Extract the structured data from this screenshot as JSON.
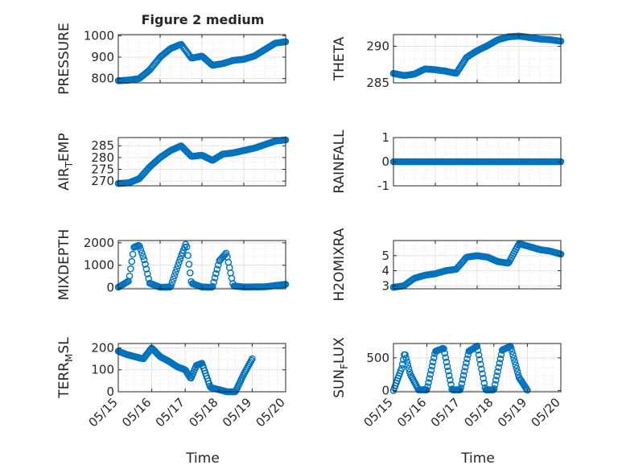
{
  "figure": {
    "title": "Figure 2 medium"
  },
  "chart_data": [
    {
      "type": "scatter",
      "name": "PRESSURE",
      "ylabel": "PRESSURE",
      "xlim": [
        "05/15",
        "05/19"
      ],
      "ylim": [
        780,
        1005
      ],
      "yticks": [
        800,
        900,
        1000
      ],
      "ytick_labels": [
        "800",
        "900",
        "1000"
      ],
      "grid": true,
      "minor_grid": true,
      "x": [
        "05/15 00:00",
        "05/15 06:00",
        "05/15 12:00",
        "05/15 18:00",
        "05/16 00:00",
        "05/16 06:00",
        "05/16 12:00",
        "05/16 18:00",
        "05/17 00:00",
        "05/17 06:00",
        "05/17 12:00",
        "05/17 18:00",
        "05/18 00:00",
        "05/18 06:00",
        "05/18 12:00",
        "05/18 18:00",
        "05/19 00:00"
      ],
      "y": [
        790,
        793,
        800,
        840,
        900,
        940,
        960,
        895,
        905,
        862,
        870,
        885,
        890,
        905,
        935,
        965,
        972
      ]
    },
    {
      "type": "scatter",
      "name": "THETA",
      "ylabel": "THETA",
      "xlim": [
        "05/15",
        "05/19"
      ],
      "ylim": [
        285,
        291.6
      ],
      "yticks": [
        285,
        290
      ],
      "ytick_labels": [
        "285",
        "290"
      ],
      "grid": true,
      "minor_grid": true,
      "x": [
        "05/15 00:00",
        "05/15 06:00",
        "05/15 12:00",
        "05/15 18:00",
        "05/16 00:00",
        "05/16 06:00",
        "05/16 12:00",
        "05/16 18:00",
        "05/17 00:00",
        "05/17 06:00",
        "05/17 12:00",
        "05/17 18:00",
        "05/18 00:00",
        "05/18 06:00",
        "05/18 12:00",
        "05/18 18:00",
        "05/19 00:00"
      ],
      "y": [
        286.3,
        286.0,
        286.2,
        286.9,
        286.8,
        286.6,
        286.3,
        288.5,
        289.4,
        290.1,
        290.9,
        291.3,
        291.4,
        291.2,
        291.0,
        290.9,
        290.7
      ]
    },
    {
      "type": "scatter",
      "name": "AIR_TEMP",
      "ylabel_main": "AIR",
      "ylabel_sub": "T",
      "ylabel_rest": "EMP",
      "xlim": [
        "05/15",
        "05/19"
      ],
      "ylim": [
        268,
        288.5
      ],
      "yticks": [
        270,
        275,
        280,
        285
      ],
      "ytick_labels": [
        "270",
        "275",
        "280",
        "285"
      ],
      "grid": true,
      "minor_grid": true,
      "x": [
        "05/15 00:00",
        "05/15 06:00",
        "05/15 12:00",
        "05/15 18:00",
        "05/16 00:00",
        "05/16 06:00",
        "05/16 12:00",
        "05/16 18:00",
        "05/17 00:00",
        "05/17 06:00",
        "05/17 12:00",
        "05/17 18:00",
        "05/18 00:00",
        "05/18 06:00",
        "05/18 12:00",
        "05/18 18:00",
        "05/19 00:00"
      ],
      "y": [
        269,
        269.3,
        271,
        276,
        280,
        283,
        285,
        280.5,
        281,
        278.8,
        281.5,
        282,
        283,
        284,
        285.5,
        287,
        287.5
      ]
    },
    {
      "type": "scatter",
      "name": "RAINFALL",
      "ylabel": "RAINFALL",
      "xlim": [
        "05/15",
        "05/19"
      ],
      "ylim": [
        -1,
        1
      ],
      "yticks": [
        -1,
        0,
        1
      ],
      "ytick_labels": [
        "-1",
        "0",
        "1"
      ],
      "grid": true,
      "minor_grid": true,
      "x": [
        "05/15 00:00",
        "05/15 12:00",
        "05/16 00:00",
        "05/16 12:00",
        "05/17 00:00",
        "05/17 12:00",
        "05/18 00:00",
        "05/18 12:00",
        "05/19 00:00"
      ],
      "y": [
        0,
        0,
        0,
        0,
        0,
        0,
        0,
        0,
        0
      ]
    },
    {
      "type": "scatter",
      "name": "MIXDEPTH",
      "ylabel": "MIXDEPTH",
      "xlim": [
        "05/15",
        "05/19"
      ],
      "ylim": [
        -50,
        2100
      ],
      "yticks": [
        0,
        1000,
        2000
      ],
      "ytick_labels": [
        "0",
        "1000",
        "2000"
      ],
      "grid": true,
      "minor_grid": true,
      "x": [
        "05/15 00:00",
        "05/15 06:00",
        "05/15 09:00",
        "05/15 12:00",
        "05/15 15:00",
        "05/15 18:00",
        "05/16 00:00",
        "05/16 06:00",
        "05/16 12:00",
        "05/16 15:00",
        "05/16 18:00",
        "05/17 00:00",
        "05/17 06:00",
        "05/17 10:00",
        "05/17 14:00",
        "05/17 18:00",
        "05/18 00:00",
        "05/18 12:00",
        "05/19 00:00"
      ],
      "y": [
        20,
        300,
        1800,
        1900,
        1200,
        200,
        20,
        30,
        1400,
        2000,
        200,
        30,
        20,
        1200,
        1550,
        80,
        30,
        40,
        150
      ]
    },
    {
      "type": "scatter",
      "name": "H2OMIXRA",
      "ylabel": "H2OMIXRA",
      "xlim": [
        "05/15",
        "05/19"
      ],
      "ylim": [
        2.8,
        6.0
      ],
      "yticks": [
        3,
        4,
        5
      ],
      "ytick_labels": [
        "3",
        "4",
        "5"
      ],
      "grid": true,
      "minor_grid": true,
      "x": [
        "05/15 00:00",
        "05/15 06:00",
        "05/15 12:00",
        "05/15 18:00",
        "05/16 00:00",
        "05/16 06:00",
        "05/16 12:00",
        "05/16 18:00",
        "05/17 00:00",
        "05/17 06:00",
        "05/17 12:00",
        "05/17 18:00",
        "05/18 00:00",
        "05/18 06:00",
        "05/18 12:00",
        "05/18 18:00",
        "05/19 00:00"
      ],
      "y": [
        2.9,
        3.0,
        3.5,
        3.7,
        3.8,
        4.0,
        4.1,
        4.9,
        5.0,
        4.9,
        4.6,
        4.5,
        5.8,
        5.6,
        5.4,
        5.3,
        5.1
      ]
    },
    {
      "type": "scatter",
      "name": "TERR_MSL",
      "ylabel_main": "TERR",
      "ylabel_sub": "M",
      "ylabel_rest": "SL",
      "xlim": [
        "05/15",
        "05/20"
      ],
      "ylim": [
        0,
        220
      ],
      "yticks": [
        0,
        100,
        200
      ],
      "ytick_labels": [
        "0",
        "100",
        "200"
      ],
      "xtick_labels": [
        "05/15",
        "05/16",
        "05/17",
        "05/18",
        "05/19",
        "05/20"
      ],
      "xlabel": "Time",
      "grid": true,
      "minor_grid": true,
      "x": [
        "05/15 00:00",
        "05/15 06:00",
        "05/15 12:00",
        "05/15 18:00",
        "05/16 00:00",
        "05/16 06:00",
        "05/16 12:00",
        "05/16 18:00",
        "05/17 00:00",
        "05/17 04:00",
        "05/17 08:00",
        "05/17 12:00",
        "05/17 18:00",
        "05/18 00:00",
        "05/18 06:00",
        "05/18 12:00",
        "05/18 18:00",
        "05/19 00:00"
      ],
      "y": [
        185,
        170,
        160,
        150,
        200,
        160,
        140,
        115,
        100,
        60,
        120,
        130,
        20,
        10,
        0,
        0,
        80,
        150
      ]
    },
    {
      "type": "scatter",
      "name": "SUN_FLUX",
      "ylabel_main": "SUN",
      "ylabel_sub": "F",
      "ylabel_rest": "LUX",
      "xlim": [
        "05/15",
        "05/20"
      ],
      "ylim": [
        -20,
        720
      ],
      "yticks": [
        0,
        500
      ],
      "ytick_labels": [
        "0",
        "500"
      ],
      "xtick_labels": [
        "05/15",
        "05/16",
        "05/17",
        "05/18",
        "05/19",
        "05/20"
      ],
      "xlabel": "Time",
      "grid": true,
      "minor_grid": true,
      "x": [
        "05/15 00:00",
        "05/15 06:00",
        "05/15 08:00",
        "05/15 12:00",
        "05/15 18:00",
        "05/16 00:00",
        "05/16 06:00",
        "05/16 12:00",
        "05/16 18:00",
        "05/17 00:00",
        "05/17 06:00",
        "05/17 12:00",
        "05/17 18:00",
        "05/18 00:00",
        "05/18 06:00",
        "05/18 12:00",
        "05/18 18:00",
        "05/19 00:00"
      ],
      "y": [
        0,
        350,
        580,
        250,
        10,
        10,
        600,
        650,
        10,
        10,
        600,
        680,
        10,
        10,
        620,
        680,
        200,
        5
      ]
    }
  ]
}
